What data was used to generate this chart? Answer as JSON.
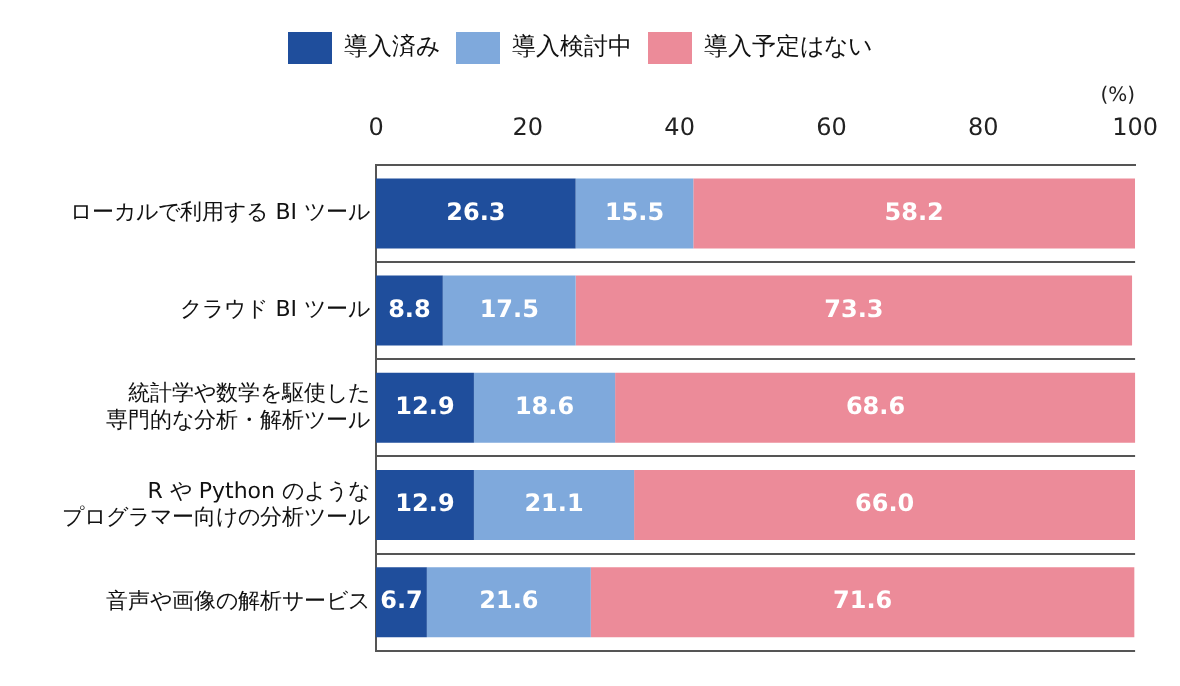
{
  "chart_data": {
    "type": "bar",
    "orientation": "horizontal",
    "stacked": true,
    "xlabel": "(%)",
    "categories": [
      "ローカルで利用する BI ツール",
      "クラウド BI ツール",
      "統計学や数学を駆使した専門的な分析・解析ツール",
      "R や Python のようなプログラマー向けの分析ツール",
      "音声や画像の解析サービス"
    ],
    "series": [
      {
        "name": "導入済み",
        "color": "#1f4e9c",
        "values": [
          26.3,
          8.8,
          12.9,
          12.9,
          6.7
        ],
        "value_labels": [
          "26.3",
          "8.8",
          "12.9",
          "12.9",
          "6.7"
        ]
      },
      {
        "name": "導入検討中",
        "color": "#7fa9dc",
        "values": [
          15.5,
          17.5,
          18.6,
          21.1,
          21.6
        ],
        "value_labels": [
          "15.5",
          "17.5",
          "18.6",
          "21.1",
          "21.6"
        ]
      },
      {
        "name": "導入予定はない",
        "color": "#ec8b99",
        "values": [
          58.2,
          73.3,
          68.6,
          66.0,
          71.6
        ],
        "value_labels": [
          "58.2",
          "73.3",
          "68.6",
          "66.0",
          "71.6"
        ]
      }
    ],
    "xlim": [
      0,
      100
    ],
    "xticks": [
      0,
      20,
      40,
      60,
      80,
      100
    ],
    "grid": false,
    "legend": "top"
  }
}
